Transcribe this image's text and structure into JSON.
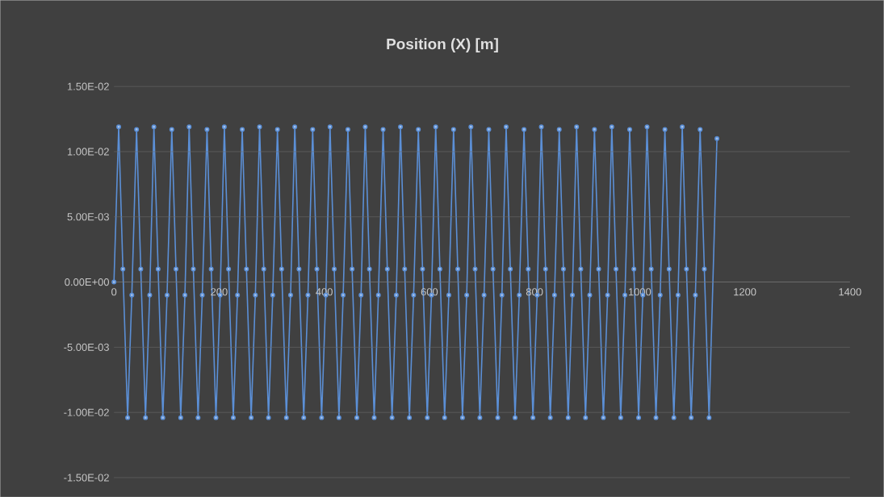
{
  "chart_data": {
    "type": "line",
    "title": "Position (X) [m]",
    "xlim": [
      0,
      1400
    ],
    "xticks": [
      0,
      200,
      400,
      600,
      800,
      1000,
      1200,
      1400
    ],
    "ylim": [
      -0.015,
      0.015
    ],
    "yticks": [
      {
        "value": -0.015,
        "label": "-1.50E-02"
      },
      {
        "value": -0.01,
        "label": "-1.00E-02"
      },
      {
        "value": -0.005,
        "label": "-5.00E-03"
      },
      {
        "value": 0,
        "label": "0.00E+00"
      },
      {
        "value": 0.005,
        "label": "5.00E-03"
      },
      {
        "value": 0.01,
        "label": "1.00E-02"
      },
      {
        "value": 0.015,
        "label": "1.50E-02"
      }
    ],
    "grid": "y",
    "marker": "circle",
    "line_style": "solid",
    "series": [
      {
        "color": "#5b8fd6",
        "x": [
          0,
          9,
          17,
          26,
          34,
          43,
          51,
          60,
          68,
          76,
          84,
          93,
          101,
          110,
          118,
          127,
          135,
          143,
          151,
          160,
          168,
          177,
          185,
          194,
          202,
          210,
          218,
          227,
          235,
          244,
          252,
          261,
          269,
          277,
          285,
          294,
          302,
          311,
          319,
          328,
          336,
          344,
          352,
          361,
          369,
          378,
          386,
          395,
          403,
          411,
          419,
          428,
          436,
          445,
          453,
          462,
          470,
          478,
          486,
          495,
          503,
          512,
          520,
          529,
          537,
          545,
          553,
          562,
          570,
          579,
          587,
          596,
          604,
          612,
          620,
          629,
          637,
          646,
          654,
          663,
          671,
          679,
          687,
          696,
          704,
          713,
          721,
          730,
          738,
          746,
          754,
          763,
          771,
          780,
          788,
          797,
          805,
          813,
          821,
          830,
          838,
          847,
          855,
          864,
          872,
          880,
          888,
          897,
          905,
          914,
          922,
          931,
          939,
          947,
          955,
          964,
          972,
          981,
          989,
          998,
          1006,
          1014,
          1022,
          1031,
          1039,
          1048,
          1056,
          1065,
          1073,
          1081,
          1089,
          1098,
          1106,
          1115,
          1123,
          1132,
          1147
        ],
        "values": [
          0,
          0.0119,
          0.001,
          -0.0104,
          -0.001,
          0.0117,
          0.001,
          -0.0104,
          -0.001,
          0.0119,
          0.001,
          -0.0104,
          -0.001,
          0.0117,
          0.001,
          -0.0104,
          -0.001,
          0.0119,
          0.001,
          -0.0104,
          -0.001,
          0.0117,
          0.001,
          -0.0104,
          -0.001,
          0.0119,
          0.001,
          -0.0104,
          -0.001,
          0.0117,
          0.001,
          -0.0104,
          -0.001,
          0.0119,
          0.001,
          -0.0104,
          -0.001,
          0.0117,
          0.001,
          -0.0104,
          -0.001,
          0.0119,
          0.001,
          -0.0104,
          -0.001,
          0.0117,
          0.001,
          -0.0104,
          -0.001,
          0.0119,
          0.001,
          -0.0104,
          -0.001,
          0.0117,
          0.001,
          -0.0104,
          -0.001,
          0.0119,
          0.001,
          -0.0104,
          -0.001,
          0.0117,
          0.001,
          -0.0104,
          -0.001,
          0.0119,
          0.001,
          -0.0104,
          -0.001,
          0.0117,
          0.001,
          -0.0104,
          -0.001,
          0.0119,
          0.001,
          -0.0104,
          -0.001,
          0.0117,
          0.001,
          -0.0104,
          -0.001,
          0.0119,
          0.001,
          -0.0104,
          -0.001,
          0.0117,
          0.001,
          -0.0104,
          -0.001,
          0.0119,
          0.001,
          -0.0104,
          -0.001,
          0.0117,
          0.001,
          -0.0104,
          -0.001,
          0.0119,
          0.001,
          -0.0104,
          -0.001,
          0.0117,
          0.001,
          -0.0104,
          -0.001,
          0.0119,
          0.001,
          -0.0104,
          -0.001,
          0.0117,
          0.001,
          -0.0104,
          -0.001,
          0.0119,
          0.001,
          -0.0104,
          -0.001,
          0.0117,
          0.001,
          -0.0104,
          -0.001,
          0.0119,
          0.001,
          -0.0104,
          -0.001,
          0.0117,
          0.001,
          -0.0104,
          -0.001,
          0.0119,
          0.001,
          -0.0104,
          -0.001,
          0.0117,
          0.001,
          -0.0104,
          0.011
        ]
      }
    ]
  }
}
